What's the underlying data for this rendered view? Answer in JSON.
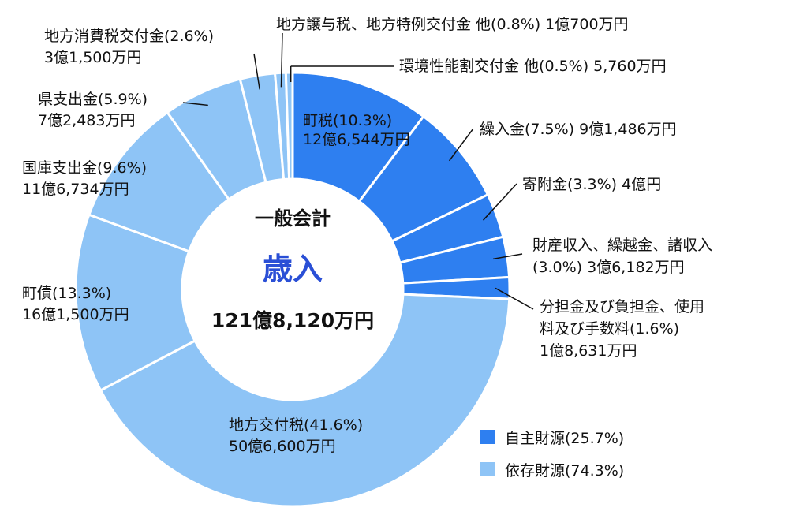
{
  "chart_data": {
    "type": "pie",
    "style": "donut",
    "center": {
      "line1": "一般会計",
      "line2": "歳入",
      "line3": "121億8,120万円"
    },
    "slices": [
      {
        "name": "町税",
        "percent": 10.3,
        "amount": "12億6,544万円",
        "group": "自主財源",
        "label1": "町税(10.3%)",
        "label2": "12億6,544万円"
      },
      {
        "name": "繰入金",
        "percent": 7.5,
        "amount": "9億1,486万円",
        "group": "自主財源",
        "label1": "繰入金(7.5%) 9億1,486万円",
        "label2": ""
      },
      {
        "name": "寄附金",
        "percent": 3.3,
        "amount": "4億円",
        "group": "自主財源",
        "label1": "寄附金(3.3%) 4億円",
        "label2": ""
      },
      {
        "name": "財産収入、繰越金、諸収入",
        "percent": 3.0,
        "amount": "3億6,182万円",
        "group": "自主財源",
        "label1": "財産収入、繰越金、諸収入",
        "label2": "(3.0%) 3億6,182万円"
      },
      {
        "name": "分担金及び負担金、使用料及び手数料",
        "percent": 1.6,
        "amount": "1億8,631万円",
        "group": "自主財源",
        "label1": "分担金及び負担金、使用",
        "label2": "料及び手数料(1.6%)",
        "label3": "1億8,631万円"
      },
      {
        "name": "地方交付税",
        "percent": 41.6,
        "amount": "50億6,600万円",
        "group": "依存財源",
        "label1": "地方交付税(41.6%)",
        "label2": "50億6,600万円"
      },
      {
        "name": "町債",
        "percent": 13.3,
        "amount": "16億1,500万円",
        "group": "依存財源",
        "label1": "町債(13.3%)",
        "label2": "16億1,500万円"
      },
      {
        "name": "国庫支出金",
        "percent": 9.6,
        "amount": "11億6,734万円",
        "group": "依存財源",
        "label1": "国庫支出金(9.6%)",
        "label2": "11億6,734万円"
      },
      {
        "name": "県支出金",
        "percent": 5.9,
        "amount": "7億2,483万円",
        "group": "依存財源",
        "label1": "県支出金(5.9%)",
        "label2": "7億2,483万円"
      },
      {
        "name": "地方消費税交付金",
        "percent": 2.6,
        "amount": "3億1,500万円",
        "group": "依存財源",
        "label1": "地方消費税交付金(2.6%)",
        "label2": "3億1,500万円"
      },
      {
        "name": "地方譲与税、地方特例交付金 他",
        "percent": 0.8,
        "amount": "1億700万円",
        "group": "依存財源",
        "label1": "地方譲与税、地方特例交付金 他(0.8%) 1億700万円",
        "label2": ""
      },
      {
        "name": "環境性能割交付金 他",
        "percent": 0.5,
        "amount": "5,760万円",
        "group": "依存財源",
        "label1": "環境性能割交付金 他(0.5%) 5,760万円",
        "label2": ""
      }
    ],
    "legend": {
      "position": "bottom-right",
      "items": [
        {
          "label": "自主財源(25.7%)",
          "color": "#2e7ff0"
        },
        {
          "label": "依存財源(74.3%)",
          "color": "#8ec4f6"
        }
      ]
    },
    "colors": {
      "自主財源": "#2e7ff0",
      "依存財源": "#8ec4f6",
      "separator": "#ffffff"
    }
  }
}
